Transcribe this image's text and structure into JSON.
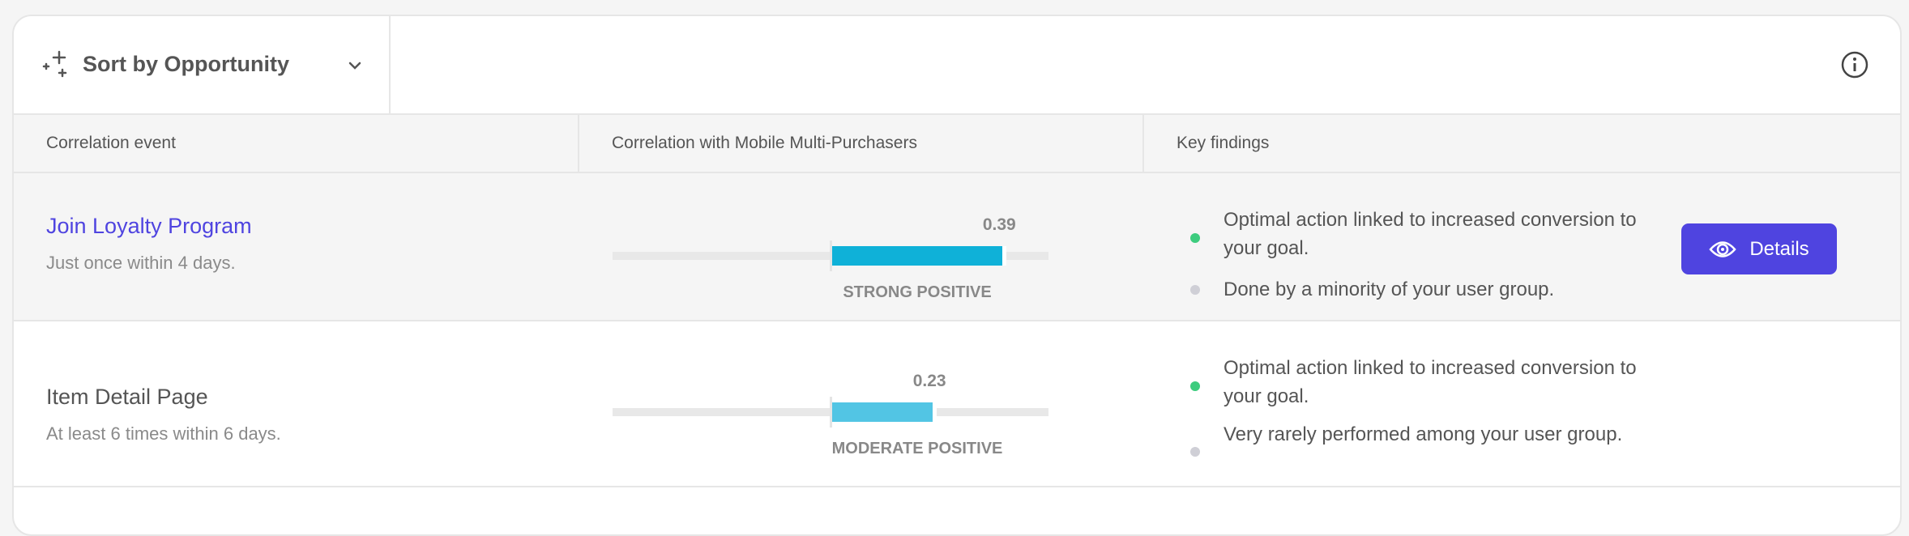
{
  "toolbar": {
    "sort_label": "Sort by Opportunity",
    "sort_icon": "sparkle-icon",
    "info_icon": "info-icon"
  },
  "table": {
    "headers": [
      "Correlation event",
      "Correlation with Mobile Multi-Purchasers",
      "Key findings"
    ],
    "scale_range": [
      -0.5,
      0.5
    ],
    "rows": [
      {
        "title": "Join Loyalty Program",
        "title_color": "#4f44e0",
        "subtitle": "Just once within 4 days.",
        "value": 0.39,
        "value_label": "0.39",
        "strength": "STRONG POSITIVE",
        "bar_color": "#0fb1d8",
        "findings": [
          {
            "text": "Optimal action linked to increased conversion to your goal.",
            "status": "positive",
            "color": "#3dcc7e"
          },
          {
            "text": "Done by a minority of your user group.",
            "status": "neutral",
            "color": "#cfcfd6"
          }
        ],
        "action_label": "Details",
        "action_icon": "eye-icon"
      },
      {
        "title": "Item Detail Page",
        "title_color": "#555555",
        "subtitle": "At least 6 times within 6 days.",
        "value": 0.23,
        "value_label": "0.23",
        "strength": "MODERATE POSITIVE",
        "bar_color": "#52c5e4",
        "findings": [
          {
            "text": "Optimal action linked to increased conversion to your goal.",
            "status": "positive",
            "color": "#3dcc7e"
          },
          {
            "text": "Very rarely performed among your user group.",
            "status": "neutral",
            "color": "#cfcfd6"
          }
        ]
      }
    ]
  }
}
